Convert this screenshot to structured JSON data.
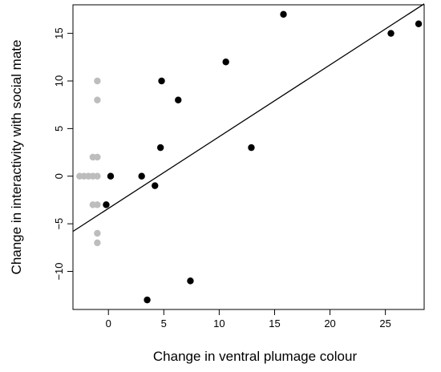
{
  "chart_data": {
    "type": "scatter",
    "title": "",
    "xlabel": "Change in ventral plumage colour",
    "ylabel": "Change in interactivity with social mate",
    "xlim": [
      -3.2,
      28.5
    ],
    "ylim": [
      -14,
      18
    ],
    "xticks": [
      0,
      5,
      10,
      15,
      20,
      25
    ],
    "yticks": [
      -10,
      -5,
      0,
      5,
      10,
      15
    ],
    "grid": false,
    "legend": "none",
    "series": [
      {
        "color": "#000000",
        "points": [
          [
            -0.2,
            -3
          ],
          [
            0.2,
            0
          ],
          [
            3.0,
            0
          ],
          [
            4.2,
            -1
          ],
          [
            4.7,
            3
          ],
          [
            4.8,
            10
          ],
          [
            6.3,
            8
          ],
          [
            3.5,
            -13
          ],
          [
            7.4,
            -11
          ],
          [
            10.6,
            12
          ],
          [
            12.9,
            3
          ],
          [
            15.8,
            17
          ],
          [
            25.5,
            15
          ],
          [
            28.0,
            16
          ]
        ]
      },
      {
        "color": "#bdbdbd",
        "points": [
          [
            -2.6,
            0
          ],
          [
            -2.2,
            0
          ],
          [
            -1.8,
            0
          ],
          [
            -1.4,
            0
          ],
          [
            -1.0,
            0
          ],
          [
            -1.4,
            2
          ],
          [
            -1.0,
            2
          ],
          [
            -1.4,
            -3
          ],
          [
            -1.0,
            -3
          ],
          [
            -1.0,
            8
          ],
          [
            -1.0,
            10
          ],
          [
            -1.0,
            -6
          ],
          [
            -1.0,
            -7
          ]
        ]
      }
    ],
    "fit_line": {
      "x": [
        -3.2,
        28.5
      ],
      "y": [
        -5.8,
        18.1
      ],
      "color": "#000000"
    }
  }
}
